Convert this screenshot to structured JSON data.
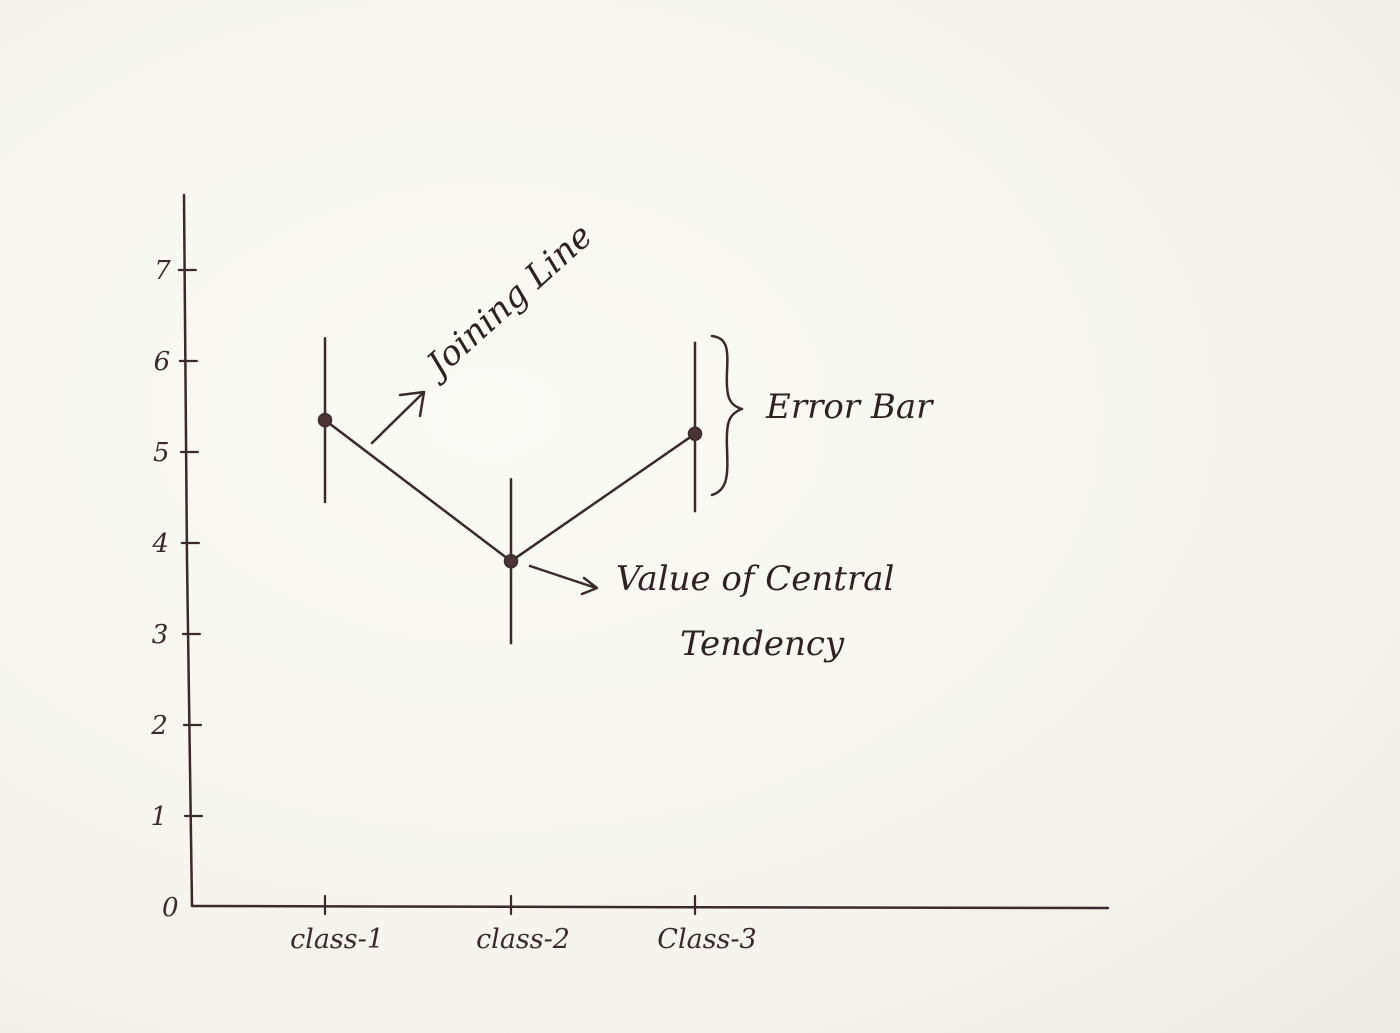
{
  "chart_data": {
    "type": "line",
    "title": "",
    "xlabel": "",
    "ylabel": "",
    "categories": [
      "class-1",
      "class-2",
      "Class-3"
    ],
    "series": [
      {
        "values": [
          5.35,
          3.8,
          5.2
        ],
        "error_low": [
          4.45,
          2.9,
          4.35
        ],
        "error_high": [
          6.25,
          4.7,
          6.2
        ],
        "color": "#3a2a2c"
      }
    ],
    "ylim": [
      0,
      7.6
    ],
    "yticks": [
      "0",
      "1",
      "2",
      "3",
      "4",
      "5",
      "6",
      "7"
    ],
    "grid": false,
    "annotations": {
      "joining_line": "Joining Line",
      "error_bar": "Error Bar",
      "central_tendency_line1": "Value of Central",
      "central_tendency_line2": "Tendency"
    }
  }
}
